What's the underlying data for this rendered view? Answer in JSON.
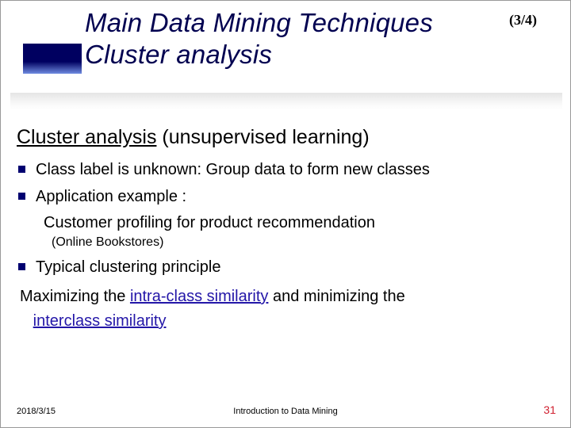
{
  "title": {
    "line1": "Main Data Mining Techniques",
    "line2": "Cluster analysis",
    "pager": "(3/4)"
  },
  "heading": {
    "underlined": "Cluster analysis",
    "rest": " (unsupervised learning)"
  },
  "bullets": {
    "b1": "Class label is unknown: Group data to form new classes",
    "b2": "Application example :",
    "b2_sub": "Customer profiling for product recommendation",
    "b2_note": "(Online Bookstores)",
    "b3": "Typical clustering principle"
  },
  "principle": {
    "t1": "Maximizing the ",
    "u1": "intra-class similarity",
    "t2": " and minimizing the ",
    "u2": "interclass similarity"
  },
  "footer": {
    "date": "2018/3/15",
    "center": "Introduction to Data Mining",
    "page": "31"
  }
}
